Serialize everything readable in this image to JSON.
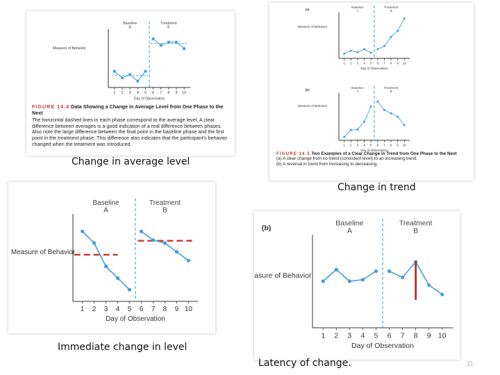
{
  "captions": {
    "average_level": "Change in average level",
    "trend": "Change in trend",
    "immediate": "Immediate change in level",
    "latency": "Latency of change."
  },
  "page_number": "11",
  "colors": {
    "series": "#3fa0d8",
    "axis": "#333333",
    "threshold": "#c8342b",
    "figure_label": "#c8342b",
    "text": "#222222"
  },
  "figure_14_4": {
    "label": "FIGURE 14.4",
    "title": "Data Showing a Change in Average Level from One Phase to the Next",
    "body": "The horizontal dashed lines in each phase correspond to the average level. A clear difference between averages is a good indication of a real difference between phases. Also note the large difference between the final point in the baseline phase and the first point in the treatment phase. This difference also indicates that the participant's behavior changed when the treatment was introduced."
  },
  "figure_14_5": {
    "label": "FIGURE 14.5",
    "title": "Two Examples of a Clear Change in Trend from One Phase to the Next",
    "caption_a": "(a)  A clear change from no trend (consistent level) to an increasing trend.",
    "caption_b": "(b)  A reversal in trend from increasing to decreasing."
  },
  "chart_data": [
    {
      "id": "average-level",
      "type": "line",
      "panel_label": "",
      "phases": [
        {
          "name": "Baseline",
          "code": "A"
        },
        {
          "name": "Treatment",
          "code": "B"
        }
      ],
      "ylabel": "Measure of Behavior",
      "xlabel": "Day of Observation",
      "x": [
        1,
        2,
        3,
        4,
        5,
        6,
        7,
        8,
        9,
        10
      ],
      "values": [
        4,
        2,
        3,
        1,
        4,
        14,
        12,
        13,
        13,
        11
      ],
      "phase_change_after": 5,
      "xlim": [
        0.2,
        10.8
      ],
      "ylim": [
        -1,
        17
      ],
      "mean_lines": [
        {
          "from": 1,
          "to": 5,
          "value": 2.8
        },
        {
          "from": 6,
          "to": 10,
          "value": 12.6
        }
      ],
      "threshold_lines": []
    },
    {
      "id": "trend-a",
      "type": "line",
      "panel_label": "(a)",
      "phases": [
        {
          "name": "Baseline",
          "code": "A"
        },
        {
          "name": "Treatment",
          "code": "B"
        }
      ],
      "ylabel": "Measure of Behavior",
      "xlabel": "Day of Observation",
      "x": [
        1,
        2,
        3,
        4,
        5,
        6,
        7,
        8,
        9,
        10
      ],
      "values": [
        1.5,
        2.5,
        2,
        3,
        1.8,
        3,
        4,
        7,
        9,
        13
      ],
      "phase_change_after": 5,
      "xlim": [
        0.2,
        10.8
      ],
      "ylim": [
        0,
        15
      ],
      "mean_lines": [],
      "threshold_lines": []
    },
    {
      "id": "trend-b",
      "type": "line",
      "panel_label": "(b)",
      "phases": [
        {
          "name": "Baseline",
          "code": "A"
        },
        {
          "name": "Treatment",
          "code": "B"
        }
      ],
      "ylabel": "Measure of Behavior",
      "xlabel": "Day of Observation",
      "x": [
        1,
        2,
        3,
        4,
        5,
        6,
        7,
        8,
        9,
        10
      ],
      "values": [
        1,
        3,
        3.2,
        5.5,
        10,
        11.5,
        9,
        8,
        7,
        4.5
      ],
      "phase_change_after": 5,
      "xlim": [
        0.2,
        10.8
      ],
      "ylim": [
        0,
        14
      ],
      "mean_lines": [],
      "threshold_lines": []
    },
    {
      "id": "immediate-change",
      "type": "line",
      "panel_label": "",
      "phases": [
        {
          "name": "Baseline",
          "code": "A"
        },
        {
          "name": "Treatment",
          "code": "B"
        }
      ],
      "ylabel": "Measure of Behavior",
      "xlabel": "Day of Observation",
      "x": [
        1,
        2,
        3,
        4,
        5,
        6,
        7,
        8,
        9,
        10
      ],
      "values": [
        11,
        9,
        5,
        3,
        1,
        11,
        9.5,
        9,
        7.5,
        6
      ],
      "phase_change_after": 5,
      "xlim": [
        0.2,
        10.8
      ],
      "ylim": [
        -1,
        14
      ],
      "mean_lines": [],
      "threshold_lines": [
        {
          "from": 0.3,
          "to": 4.0,
          "value": 7.0
        },
        {
          "from": 5.7,
          "to": 10.3,
          "value": 9.4
        }
      ]
    },
    {
      "id": "latency",
      "type": "line",
      "panel_label": "(b)",
      "phases": [
        {
          "name": "Baseline",
          "code": "A"
        },
        {
          "name": "Treatment",
          "code": "B"
        }
      ],
      "ylabel": "Measure of Behavior",
      "xlabel": "Day of Observation",
      "x": [
        1,
        2,
        3,
        4,
        5,
        6,
        7,
        8,
        9,
        10
      ],
      "values": [
        6,
        7.5,
        6,
        6.2,
        7.3,
        7.3,
        6.5,
        8.5,
        5.5,
        4.3
      ],
      "phase_change_after": 5,
      "xlim": [
        0.2,
        10.8
      ],
      "ylim": [
        0,
        12
      ],
      "mean_lines": [],
      "threshold_lines": [],
      "latency_marker": {
        "x": 8,
        "from": 8.6,
        "to": 3.6
      }
    }
  ]
}
